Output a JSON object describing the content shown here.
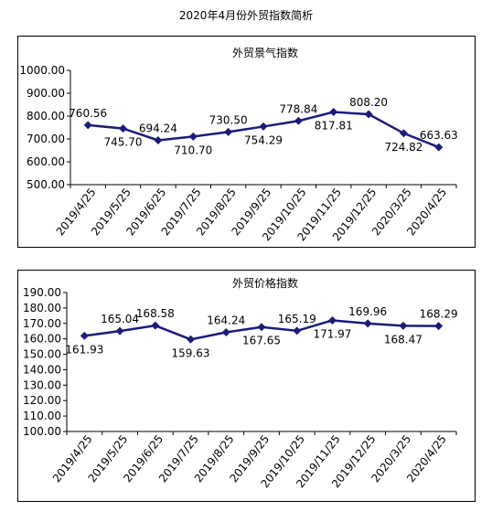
{
  "page_title": "2020年4月份外贸指数简析",
  "chart_data": [
    {
      "type": "line",
      "title": "外贸景气指数",
      "categories": [
        "2019/4/25",
        "2019/5/25",
        "2019/6/25",
        "2019/7/25",
        "2019/8/25",
        "2019/9/25",
        "2019/10/25",
        "2019/11/25",
        "2019/12/25",
        "2020/3/25",
        "2020/4/25"
      ],
      "values": [
        760.56,
        745.7,
        694.24,
        710.7,
        730.5,
        754.29,
        778.84,
        817.81,
        808.2,
        724.82,
        663.63
      ],
      "data_labels": [
        "760.56",
        "745.70",
        "694.24",
        "710.70",
        "730.50",
        "754.29",
        "778.84",
        "817.81",
        "808.20",
        "724.82",
        "663.63"
      ],
      "label_position": [
        "above",
        "below",
        "above",
        "below",
        "above",
        "below",
        "above",
        "below",
        "above",
        "below",
        "above"
      ],
      "y_ticks": [
        "1000.00",
        "900.00",
        "800.00",
        "700.00",
        "600.00",
        "500.00"
      ],
      "ylim": [
        500,
        1000
      ],
      "grid": false,
      "line_color": "#1b1b7a",
      "marker": "diamond"
    },
    {
      "type": "line",
      "title": "外贸价格指数",
      "categories": [
        "2019/4/25",
        "2019/5/25",
        "2019/6/25",
        "2019/7/25",
        "2019/8/25",
        "2019/9/25",
        "2019/10/25",
        "2019/11/25",
        "2019/12/25",
        "2020/3/25",
        "2020/4/25"
      ],
      "values": [
        161.93,
        165.04,
        168.58,
        159.63,
        164.24,
        167.65,
        165.19,
        171.97,
        169.96,
        168.47,
        168.29
      ],
      "data_labels": [
        "161.93",
        "165.04",
        "168.58",
        "159.63",
        "164.24",
        "167.65",
        "165.19",
        "171.97",
        "169.96",
        "168.47",
        "168.29"
      ],
      "label_position": [
        "below",
        "above",
        "above",
        "below",
        "above",
        "below",
        "above",
        "below",
        "above",
        "below",
        "above"
      ],
      "y_ticks": [
        "190.00",
        "180.00",
        "170.00",
        "160.00",
        "150.00",
        "140.00",
        "130.00",
        "120.00",
        "110.00",
        "100.00"
      ],
      "ylim": [
        100,
        190
      ],
      "grid": false,
      "line_color": "#1b1b7a",
      "marker": "diamond"
    }
  ]
}
